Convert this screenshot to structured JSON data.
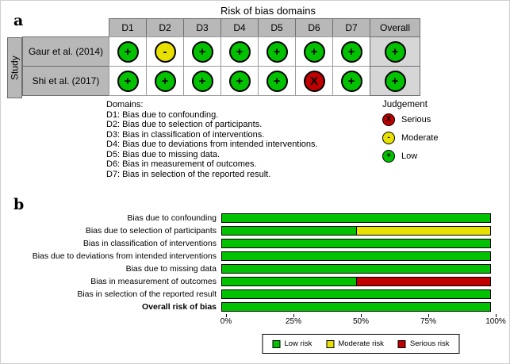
{
  "colors": {
    "low": "#02c100",
    "moderate": "#e8e000",
    "serious": "#c00000"
  },
  "symbols": {
    "low": "+",
    "moderate": "-",
    "serious": "X"
  },
  "panel_a": {
    "label": "a",
    "title": "Risk of bias domains",
    "study_axis_label": "Study",
    "columns": [
      "D1",
      "D2",
      "D3",
      "D4",
      "D5",
      "D6",
      "D7",
      "Overall"
    ],
    "rows": [
      {
        "study": "Gaur et al. (2014)",
        "judgements": [
          "low",
          "moderate",
          "low",
          "low",
          "low",
          "low",
          "low",
          "low"
        ]
      },
      {
        "study": "Shi et al. (2017)",
        "judgements": [
          "low",
          "low",
          "low",
          "low",
          "low",
          "serious",
          "low",
          "low"
        ]
      }
    ],
    "domains_note": {
      "heading": "Domains:",
      "items": [
        "D1: Bias due to confounding.",
        "D2: Bias due to selection of participants.",
        "D3: Bias in classification of interventions.",
        "D4: Bias due to deviations from intended interventions.",
        "D5: Bias due to missing data.",
        "D6: Bias in measurement of outcomes.",
        "D7: Bias in selection of the reported result."
      ]
    },
    "judgement_legend": {
      "heading": "Judgement",
      "items": [
        {
          "key": "serious",
          "label": "Serious"
        },
        {
          "key": "moderate",
          "label": "Moderate"
        },
        {
          "key": "low",
          "label": "Low"
        }
      ]
    }
  },
  "panel_b": {
    "label": "b"
  },
  "chart_data": {
    "type": "bar",
    "stacked": true,
    "orientation": "horizontal",
    "categories": [
      "Bias due to confounding",
      "Bias due to selection of participants",
      "Bias in classification of interventions",
      "Bias due to deviations from intended interventions",
      "Bias due to missing data",
      "Bias in measurement of outcomes",
      "Bias in selection of the reported result",
      "Overall risk of bias"
    ],
    "series": [
      {
        "name": "Low risk",
        "color": "#02c100",
        "values": [
          100,
          50,
          100,
          100,
          100,
          50,
          100,
          100
        ]
      },
      {
        "name": "Moderate risk",
        "color": "#e8e000",
        "values": [
          0,
          50,
          0,
          0,
          0,
          0,
          0,
          0
        ]
      },
      {
        "name": "Serious risk",
        "color": "#c00000",
        "values": [
          0,
          0,
          0,
          0,
          0,
          50,
          0,
          0
        ]
      }
    ],
    "x_ticks": [
      "0%",
      "25%",
      "50%",
      "75%",
      "100%"
    ],
    "xlim": [
      0,
      100
    ],
    "legend_position": "bottom"
  }
}
